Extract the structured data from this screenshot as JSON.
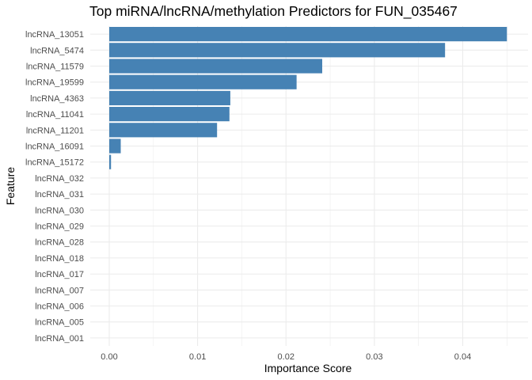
{
  "chart_data": {
    "type": "bar",
    "orientation": "horizontal",
    "title": "Top miRNA/lncRNA/methylation Predictors for FUN_035467",
    "xlabel": "Importance Score",
    "ylabel": "Feature",
    "xlim": [
      0,
      0.045
    ],
    "xticks": [
      "0.00",
      "0.01",
      "0.02",
      "0.03",
      "0.04"
    ],
    "xtick_values": [
      0,
      0.01,
      0.02,
      0.03,
      0.04
    ],
    "grid": true,
    "bar_color": "#4682B4",
    "categories": [
      "lncRNA_13051",
      "lncRNA_5474",
      "lncRNA_11579",
      "lncRNA_19599",
      "lncRNA_4363",
      "lncRNA_11041",
      "lncRNA_11201",
      "lncRNA_16091",
      "lncRNA_15172",
      "lncRNA_032",
      "lncRNA_031",
      "lncRNA_030",
      "lncRNA_029",
      "lncRNA_028",
      "lncRNA_018",
      "lncRNA_017",
      "lncRNA_007",
      "lncRNA_006",
      "lncRNA_005",
      "lncRNA_001"
    ],
    "values": [
      0.045,
      0.038,
      0.0241,
      0.0212,
      0.0137,
      0.0136,
      0.0122,
      0.0013,
      0.0002,
      0,
      0,
      0,
      0,
      0,
      0,
      0,
      0,
      0,
      0,
      0
    ]
  }
}
